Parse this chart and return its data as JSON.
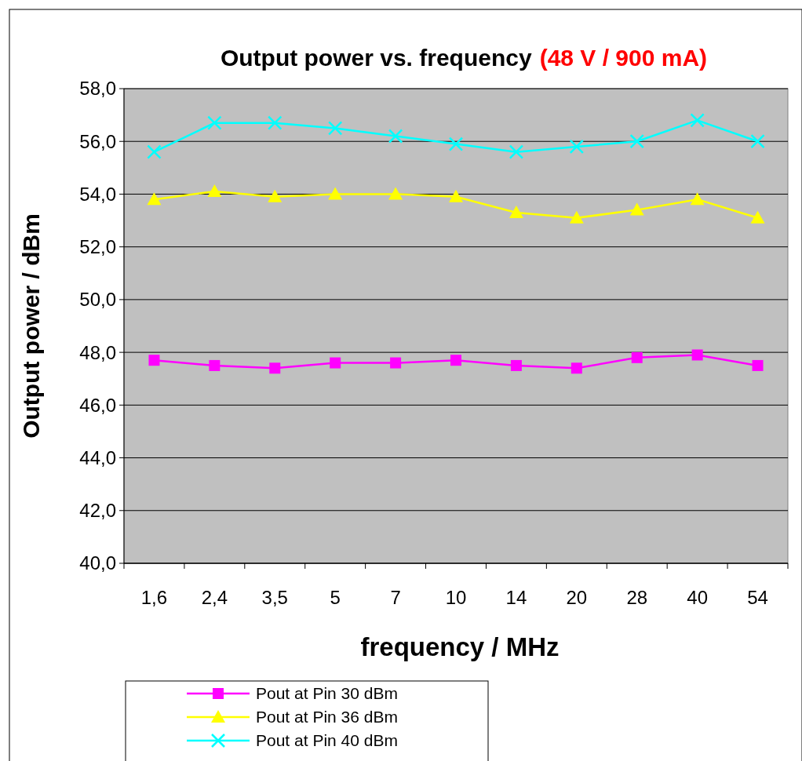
{
  "chart_data": {
    "type": "line",
    "title": "Output power vs. frequency",
    "subtitle": "(48 V / 900 mA)",
    "xlabel": "frequency / MHz",
    "ylabel": "Output power / dBm",
    "categories": [
      "1,6",
      "2,4",
      "3,5",
      "5",
      "7",
      "10",
      "14",
      "20",
      "28",
      "40",
      "54"
    ],
    "ylim": [
      40,
      58
    ],
    "yticks": [
      {
        "value": 40,
        "label": "40,0"
      },
      {
        "value": 42,
        "label": "42,0"
      },
      {
        "value": 44,
        "label": "44,0"
      },
      {
        "value": 46,
        "label": "46,0"
      },
      {
        "value": 48,
        "label": "48,0"
      },
      {
        "value": 50,
        "label": "50,0"
      },
      {
        "value": 52,
        "label": "52,0"
      },
      {
        "value": 54,
        "label": "54,0"
      },
      {
        "value": 56,
        "label": "56,0"
      },
      {
        "value": 58,
        "label": "58,0"
      }
    ],
    "grid": "y",
    "legend": "bottom",
    "series": [
      {
        "name": "Pout at Pin 30 dBm",
        "color": "#ff00ff",
        "marker": "square",
        "values": [
          47.7,
          47.5,
          47.4,
          47.6,
          47.6,
          47.7,
          47.5,
          47.4,
          47.8,
          47.9,
          47.5
        ]
      },
      {
        "name": "Pout at Pin 36 dBm",
        "color": "#ffff00",
        "marker": "triangle",
        "values": [
          53.8,
          54.1,
          53.9,
          54.0,
          54.0,
          53.9,
          53.3,
          53.1,
          53.4,
          53.8,
          53.1
        ]
      },
      {
        "name": "Pout at Pin 40 dBm",
        "color": "#00ffff",
        "marker": "cross",
        "values": [
          55.6,
          56.7,
          56.7,
          56.5,
          56.2,
          55.9,
          55.6,
          55.8,
          56.0,
          56.8,
          56.0
        ]
      }
    ]
  }
}
